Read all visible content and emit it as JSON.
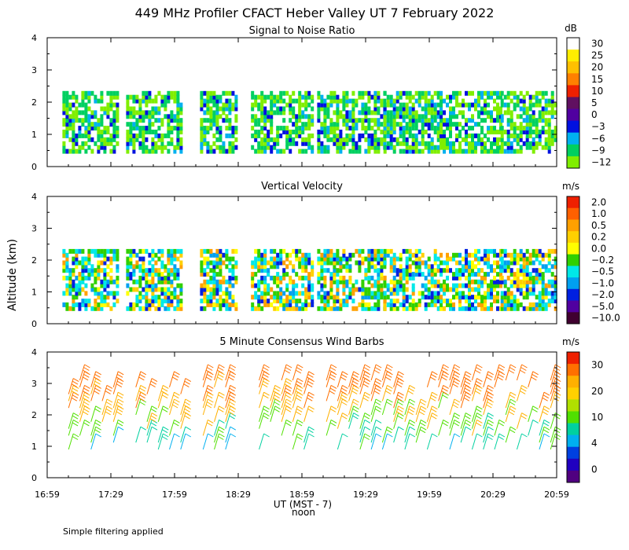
{
  "title": "449 MHz Profiler CFACT Heber Valley UT  7 February 2022",
  "footer_note": "Simple filtering applied",
  "x_axis": {
    "ticks": [
      "16:59",
      "17:29",
      "17:59",
      "18:29",
      "18:59",
      "19:29",
      "19:59",
      "20:29",
      "20:59"
    ],
    "label": "UT  (MST - 7)",
    "sublabel": "noon"
  },
  "y_axis": {
    "label": "Altitude (km)"
  },
  "chart_data": [
    {
      "type": "heatmap",
      "title": "Signal to Noise Ratio",
      "units": "dB",
      "x_range": [
        "16:59",
        "20:59"
      ],
      "ylim": [
        0,
        4
      ],
      "yticks": [
        0,
        1,
        2,
        3,
        4
      ],
      "colorbar": {
        "labels": [
          "30",
          "25",
          "20",
          "15",
          "10",
          "5",
          "0",
          "−3",
          "−6",
          "−9",
          "−12"
        ],
        "colors": [
          "#ffffff",
          "#ffee00",
          "#ffc000",
          "#ff8000",
          "#ee2000",
          "#601060",
          "#5000a0",
          "#0010e0",
          "#00b0f0",
          "#00d060",
          "#80ee00"
        ]
      }
    },
    {
      "type": "heatmap",
      "title": "Vertical Velocity",
      "units": "m/s",
      "x_range": [
        "16:59",
        "20:59"
      ],
      "ylim": [
        0,
        4
      ],
      "yticks": [
        0,
        1,
        2,
        3,
        4
      ],
      "colorbar": {
        "labels": [
          "2.0",
          "1.0",
          "0.5",
          "0.2",
          "0.0",
          "−0.2",
          "−0.5",
          "−1.0",
          "−2.0",
          "−5.0",
          "−10.0"
        ],
        "colors": [
          "#ee2000",
          "#ff6000",
          "#ffa000",
          "#ffd000",
          "#ffff00",
          "#30d000",
          "#00e8e8",
          "#00a0f0",
          "#0020e0",
          "#5000a0",
          "#400030"
        ]
      }
    },
    {
      "type": "scatter",
      "title": "5 Minute Consensus Wind Barbs",
      "units": "m/s",
      "x_range": [
        "16:59",
        "20:59"
      ],
      "ylim": [
        0,
        4
      ],
      "yticks": [
        0,
        1,
        2,
        3,
        4
      ],
      "colorbar": {
        "labels": [
          "30",
          "20",
          "10",
          "4",
          "0"
        ],
        "colors": [
          "#ee2000",
          "#ff7000",
          "#ffb000",
          "#ffd000",
          "#b0e000",
          "#50e000",
          "#00d0a0",
          "#00b0f0",
          "#0040e0",
          "#2000c0",
          "#500080"
        ]
      }
    }
  ]
}
